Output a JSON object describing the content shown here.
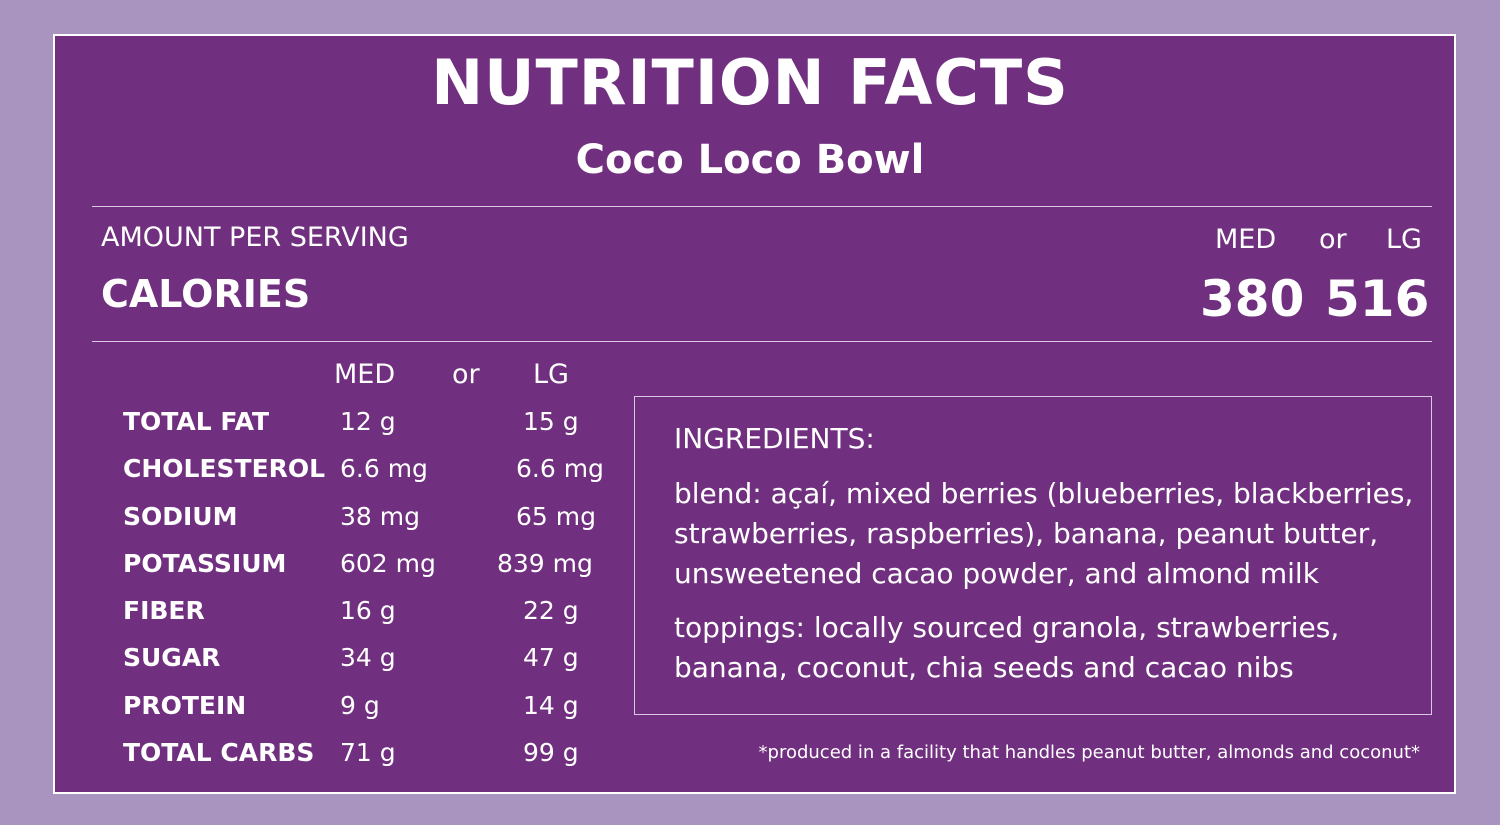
{
  "header": {
    "title": "NUTRITION FACTS",
    "subtitle": "Coco Loco Bowl"
  },
  "serving": {
    "amount_label": "AMOUNT PER SERVING",
    "calories_label": "CALORIES",
    "med_label": "MED",
    "or_label": "or",
    "lg_label": "LG",
    "calories_med": "380",
    "calories_lg": "516"
  },
  "nutrients": {
    "med_label": "MED",
    "or_label": "or",
    "lg_label": "LG",
    "rows": [
      {
        "name": "TOTAL FAT",
        "med": "12 g",
        "lg": "15 g"
      },
      {
        "name": "CHOLESTEROL",
        "med": "6.6 mg",
        "lg": "6.6 mg"
      },
      {
        "name": "SODIUM",
        "med": "38 mg",
        "lg": "65 mg"
      },
      {
        "name": "POTASSIUM",
        "med": "602 mg",
        "lg": "839 mg"
      },
      {
        "name": "FIBER",
        "med": "16 g",
        "lg": "22 g"
      },
      {
        "name": "SUGAR",
        "med": "34 g",
        "lg": "47 g"
      },
      {
        "name": "PROTEIN",
        "med": "9 g",
        "lg": "14 g"
      },
      {
        "name": "TOTAL CARBS",
        "med": "71 g",
        "lg": "99 g"
      }
    ]
  },
  "ingredients": {
    "heading": "INGREDIENTS:",
    "blend": "blend: açaí, mixed berries (blueberries, blackberries, strawberries, raspberries), banana, peanut butter, unsweetened cacao powder, and almond milk",
    "toppings": "toppings: locally sourced granola, strawberries, banana, coconut, chia seeds and cacao nibs"
  },
  "footnote": "*produced in a facility that handles peanut butter, almonds and coconut*",
  "colors": {
    "background": "#a994bf",
    "panel": "#712f7f",
    "text": "#ffffff",
    "rule": "#d9c8e2"
  }
}
